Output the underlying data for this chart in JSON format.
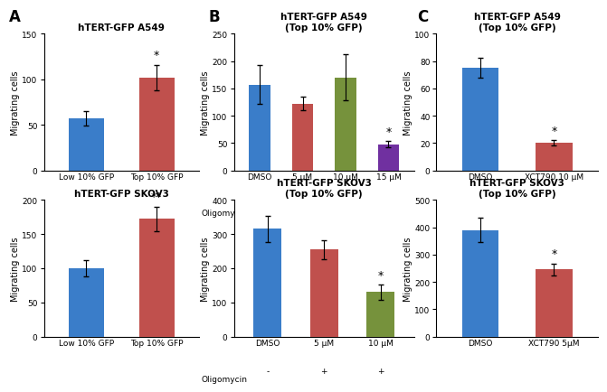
{
  "panels": {
    "A_top": {
      "title": "hTERT-GFP A549",
      "ylabel": "Migrating cells",
      "categories": [
        "Low 10% GFP",
        "Top 10% GFP"
      ],
      "values": [
        57,
        102
      ],
      "errors": [
        8,
        14
      ],
      "colors": [
        "#3A7DC9",
        "#C0504D"
      ],
      "ylim": [
        0,
        150
      ],
      "yticks": [
        0,
        50,
        100,
        150
      ],
      "sig": [
        "",
        "*"
      ],
      "has_oligomycin": false
    },
    "B_top": {
      "title": "hTERT-GFP A549\n(Top 10% GFP)",
      "ylabel": "Migrating cells",
      "categories": [
        "DMSO",
        "5 μM",
        "10 μM",
        "15 μM"
      ],
      "oligomycin": [
        "-",
        "+",
        "+",
        "+"
      ],
      "values": [
        157,
        122,
        170,
        48
      ],
      "errors": [
        35,
        12,
        42,
        5
      ],
      "colors": [
        "#3A7DC9",
        "#C0504D",
        "#76923C",
        "#7030A0"
      ],
      "ylim": [
        0,
        250
      ],
      "yticks": [
        0,
        50,
        100,
        150,
        200,
        250
      ],
      "sig": [
        "",
        "",
        "",
        "*"
      ],
      "has_oligomycin": true
    },
    "C_top": {
      "title": "hTERT-GFP A549\n(Top 10% GFP)",
      "ylabel": "Migrating cells",
      "categories": [
        "DMSO",
        "XCT790 10 μM"
      ],
      "values": [
        75,
        20
      ],
      "errors": [
        7,
        2
      ],
      "colors": [
        "#3A7DC9",
        "#C0504D"
      ],
      "ylim": [
        0,
        100
      ],
      "yticks": [
        0,
        20,
        40,
        60,
        80,
        100
      ],
      "sig": [
        "",
        "*"
      ],
      "has_oligomycin": false
    },
    "A_bot": {
      "title": "hTERT-GFP SKOV3",
      "ylabel": "Migrating cells",
      "categories": [
        "Low 10% GFP",
        "Top 10% GFP"
      ],
      "values": [
        100,
        172
      ],
      "errors": [
        12,
        18
      ],
      "colors": [
        "#3A7DC9",
        "#C0504D"
      ],
      "ylim": [
        0,
        200
      ],
      "yticks": [
        0,
        50,
        100,
        150,
        200
      ],
      "sig": [
        "",
        "**"
      ],
      "has_oligomycin": false
    },
    "B_bot": {
      "title": "hTERT-GFP SKOV3\n(Top 10% GFP)",
      "ylabel": "Migrating cells",
      "categories": [
        "DMSO",
        "5 μM",
        "10 μM"
      ],
      "oligomycin": [
        "-",
        "+",
        "+"
      ],
      "values": [
        315,
        255,
        130
      ],
      "errors": [
        38,
        28,
        22
      ],
      "colors": [
        "#3A7DC9",
        "#C0504D",
        "#76923C"
      ],
      "ylim": [
        0,
        400
      ],
      "yticks": [
        0,
        100,
        200,
        300,
        400
      ],
      "sig": [
        "",
        "",
        "*"
      ],
      "has_oligomycin": true
    },
    "C_bot": {
      "title": "hTERT-GFP SKOV3\n(Top 10% GFP)",
      "ylabel": "Migrating cells",
      "categories": [
        "DMSO",
        "XCT790 5μM"
      ],
      "values": [
        390,
        245
      ],
      "errors": [
        45,
        22
      ],
      "colors": [
        "#3A7DC9",
        "#C0504D"
      ],
      "ylim": [
        0,
        500
      ],
      "yticks": [
        0,
        100,
        200,
        300,
        400,
        500
      ],
      "sig": [
        "",
        "*"
      ],
      "has_oligomycin": false
    }
  },
  "panel_labels": {
    "A_top": "A",
    "B_top": "B",
    "C_top": "C"
  },
  "bg_color": "#FFFFFF",
  "bar_width": 0.5,
  "fontsize_title": 7.5,
  "fontsize_label": 7,
  "fontsize_tick": 6.5,
  "fontsize_sig": 9,
  "fontsize_panel": 12
}
